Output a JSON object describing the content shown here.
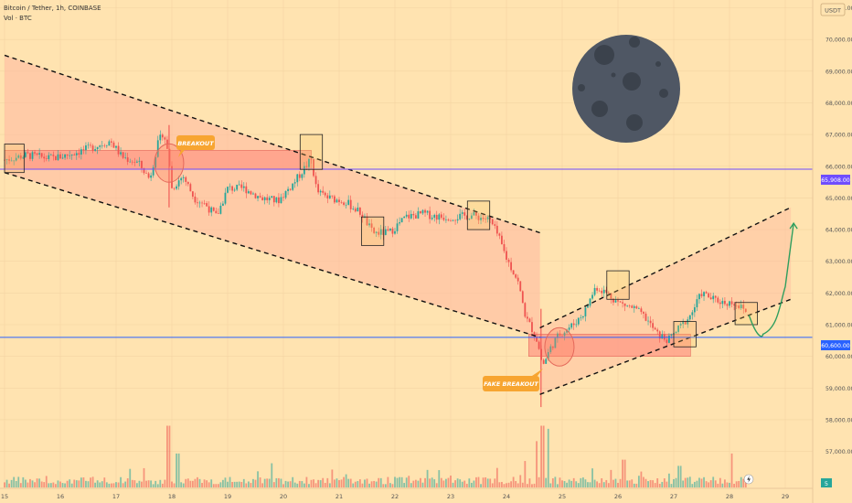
{
  "symbol": {
    "title": "Bitcoin / Tether, 1h, COINBASE",
    "volume_label": "Vol · BTC"
  },
  "price_axis": {
    "currency_badge": "USDT",
    "ticks": [
      "71,000.00",
      "70,000.00",
      "69,000.00",
      "68,000.00",
      "67,000.00",
      "66,000.00",
      "65,000.00",
      "64,000.00",
      "63,000.00",
      "62,000.00",
      "61,000.00",
      "60,000.00",
      "59,000.00",
      "58,000.00",
      "57,000.00"
    ],
    "level_upper_label": "65,908.00",
    "level_lower_label": "60,600.00",
    "volume_badge": "5"
  },
  "time_axis": {
    "ticks": [
      "15",
      "16",
      "17",
      "18",
      "19",
      "20",
      "21",
      "22",
      "23",
      "24",
      "25",
      "26",
      "27",
      "28",
      "29"
    ]
  },
  "annotations": {
    "breakout": "BREAKOUT",
    "fake_breakout": "FAKE BREAKOUT"
  },
  "colors": {
    "background": "#ffe3b0",
    "channel_fill": "#ffb8a0",
    "zone_fill": "#ff9a86",
    "candle_up": "#26a69a",
    "candle_down": "#ef5350",
    "level_upper": "#6f4dff",
    "level_lower": "#2962ff",
    "label_bg": "#f7a531",
    "projection": "#2e9e5e",
    "moon": "#4f5764",
    "moon_crater": "#3b424c"
  },
  "chart_data": {
    "type": "candlestick",
    "title": "Bitcoin / Tether, 1h, COINBASE",
    "x_unit": "day of month",
    "y_unit": "USDT",
    "xlim": [
      15,
      29
    ],
    "ylim": [
      56500,
      71500
    ],
    "price_close_path": [
      {
        "x": 15.0,
        "y": 66200
      },
      {
        "x": 15.4,
        "y": 66350
      },
      {
        "x": 15.8,
        "y": 66250
      },
      {
        "x": 16.0,
        "y": 66300
      },
      {
        "x": 16.5,
        "y": 66550
      },
      {
        "x": 16.9,
        "y": 66800
      },
      {
        "x": 17.1,
        "y": 66300
      },
      {
        "x": 17.4,
        "y": 66100
      },
      {
        "x": 17.6,
        "y": 65600
      },
      {
        "x": 17.75,
        "y": 66700
      },
      {
        "x": 17.85,
        "y": 67100
      },
      {
        "x": 17.95,
        "y": 66200
      },
      {
        "x": 18.0,
        "y": 65300
      },
      {
        "x": 18.2,
        "y": 65700
      },
      {
        "x": 18.4,
        "y": 65000
      },
      {
        "x": 18.6,
        "y": 64800
      },
      {
        "x": 18.8,
        "y": 64400
      },
      {
        "x": 19.0,
        "y": 65300
      },
      {
        "x": 19.3,
        "y": 65300
      },
      {
        "x": 19.6,
        "y": 65000
      },
      {
        "x": 19.9,
        "y": 64900
      },
      {
        "x": 20.2,
        "y": 65500
      },
      {
        "x": 20.4,
        "y": 66000
      },
      {
        "x": 20.5,
        "y": 66200
      },
      {
        "x": 20.6,
        "y": 65200
      },
      {
        "x": 20.8,
        "y": 65000
      },
      {
        "x": 21.1,
        "y": 64900
      },
      {
        "x": 21.4,
        "y": 64500
      },
      {
        "x": 21.6,
        "y": 63900
      },
      {
        "x": 21.9,
        "y": 63900
      },
      {
        "x": 22.2,
        "y": 64400
      },
      {
        "x": 22.5,
        "y": 64500
      },
      {
        "x": 22.8,
        "y": 64400
      },
      {
        "x": 23.1,
        "y": 64400
      },
      {
        "x": 23.4,
        "y": 64450
      },
      {
        "x": 23.7,
        "y": 64300
      },
      {
        "x": 23.85,
        "y": 63800
      },
      {
        "x": 24.0,
        "y": 63100
      },
      {
        "x": 24.2,
        "y": 62400
      },
      {
        "x": 24.35,
        "y": 61200
      },
      {
        "x": 24.45,
        "y": 60900
      },
      {
        "x": 24.55,
        "y": 60500
      },
      {
        "x": 24.65,
        "y": 59700
      },
      {
        "x": 24.8,
        "y": 60300
      },
      {
        "x": 24.95,
        "y": 60700
      },
      {
        "x": 25.2,
        "y": 61000
      },
      {
        "x": 25.4,
        "y": 61400
      },
      {
        "x": 25.6,
        "y": 62200
      },
      {
        "x": 25.8,
        "y": 62000
      },
      {
        "x": 26.0,
        "y": 61700
      },
      {
        "x": 26.3,
        "y": 61500
      },
      {
        "x": 26.5,
        "y": 61200
      },
      {
        "x": 26.7,
        "y": 60700
      },
      {
        "x": 26.9,
        "y": 60500
      },
      {
        "x": 27.1,
        "y": 60900
      },
      {
        "x": 27.3,
        "y": 61300
      },
      {
        "x": 27.5,
        "y": 62000
      },
      {
        "x": 27.7,
        "y": 61800
      },
      {
        "x": 27.9,
        "y": 61700
      },
      {
        "x": 28.1,
        "y": 61700
      },
      {
        "x": 28.3,
        "y": 61400
      }
    ],
    "horizontal_levels": [
      {
        "price": 65908,
        "label": "65,908.00",
        "color": "#6f4dff"
      },
      {
        "price": 60600,
        "label": "60,600.00",
        "color": "#2962ff"
      }
    ],
    "descending_channel": {
      "upper": [
        {
          "x": 15.0,
          "y": 69500
        },
        {
          "x": 24.6,
          "y": 63900
        }
      ],
      "lower": [
        {
          "x": 15.0,
          "y": 65800
        },
        {
          "x": 24.6,
          "y": 60600
        }
      ]
    },
    "ascending_channel": {
      "upper": [
        {
          "x": 24.6,
          "y": 60900
        },
        {
          "x": 29.1,
          "y": 64700
        }
      ],
      "lower": [
        {
          "x": 24.6,
          "y": 58800
        },
        {
          "x": 29.1,
          "y": 61800
        }
      ]
    },
    "zones": [
      {
        "x0": 15.0,
        "x1": 20.5,
        "y0": 65900,
        "y1": 66500
      },
      {
        "x0": 24.4,
        "x1": 27.3,
        "y0": 60000,
        "y1": 60700
      }
    ],
    "highlight_boxes": [
      {
        "x0": 15.0,
        "x1": 15.35,
        "y0": 65800,
        "y1": 66700
      },
      {
        "x0": 20.3,
        "x1": 20.7,
        "y0": 65900,
        "y1": 67000
      },
      {
        "x0": 21.4,
        "x1": 21.8,
        "y0": 63500,
        "y1": 64400
      },
      {
        "x0": 23.3,
        "x1": 23.7,
        "y0": 64000,
        "y1": 64900
      },
      {
        "x0": 25.8,
        "x1": 26.2,
        "y0": 61800,
        "y1": 62700
      },
      {
        "x0": 27.0,
        "x1": 27.4,
        "y0": 60300,
        "y1": 61100
      },
      {
        "x0": 28.1,
        "x1": 28.5,
        "y0": 61000,
        "y1": 61700
      }
    ],
    "circles": [
      {
        "x": 17.95,
        "y": 66100
      },
      {
        "x": 24.95,
        "y": 60300
      }
    ],
    "projection_path": [
      {
        "x": 28.35,
        "y": 61300
      },
      {
        "x": 28.6,
        "y": 60700
      },
      {
        "x": 28.8,
        "y": 60900
      },
      {
        "x": 29.0,
        "y": 62200
      },
      {
        "x": 29.15,
        "y": 64200
      }
    ],
    "volume_peaks": [
      {
        "x": 17.95,
        "v": 1.0
      },
      {
        "x": 18.1,
        "v": 0.55
      },
      {
        "x": 24.55,
        "v": 0.75
      },
      {
        "x": 24.65,
        "v": 1.0
      },
      {
        "x": 24.75,
        "v": 0.95
      },
      {
        "x": 26.1,
        "v": 0.45
      },
      {
        "x": 27.1,
        "v": 0.35
      },
      {
        "x": 28.05,
        "v": 0.55
      }
    ]
  }
}
